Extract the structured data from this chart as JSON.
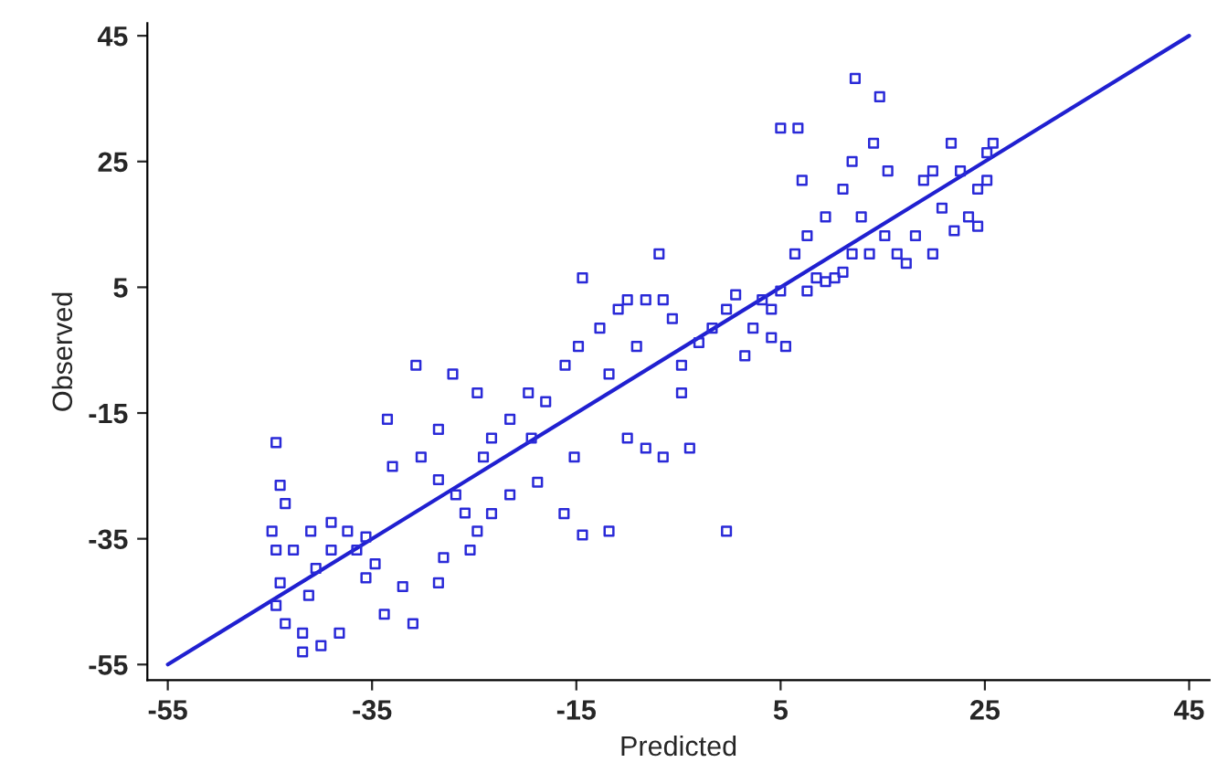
{
  "chart_data": {
    "type": "scatter",
    "xlabel": "Predicted",
    "ylabel": "Observed",
    "xlim": [
      -57,
      47
    ],
    "ylim": [
      -57.5,
      47
    ],
    "xticks": [
      -55,
      -35,
      -15,
      5,
      25,
      45
    ],
    "yticks": [
      -55,
      -35,
      -15,
      5,
      25,
      45
    ],
    "grid": false,
    "series": [
      {
        "marker": "square",
        "color": "#2a2ad8",
        "x": [
          -44.4,
          -44,
          -43.5,
          -44.8,
          -44.4,
          -44,
          -44.4,
          -43.5,
          -41.8,
          -41.8,
          -40,
          -38.2,
          -41.2,
          -40.5,
          -39,
          -37.4,
          -36.5,
          -35.6,
          -34.7,
          -33.8,
          -32,
          -31,
          -28.5,
          -28,
          -41,
          -39,
          -42.7,
          -35.6,
          -33.5,
          -30.7,
          -33,
          -30.2,
          -28.5,
          -26.8,
          -25.9,
          -24.7,
          -24.1,
          -23.3,
          -24.7,
          -21.5,
          -19.7,
          -18,
          -19.4,
          -16.1,
          -15.2,
          -14.8,
          -14.4,
          -18.8,
          -16.2,
          -14.4,
          -21.5,
          -23.3,
          -28.5,
          -27.1,
          -25.4,
          -11.8,
          -12.7,
          -11.8,
          -10.9,
          -9.1,
          -8.2,
          -6.9,
          -6.5,
          -5.6,
          -4.7,
          -3,
          -10,
          -8.2,
          -6.5,
          -3.9,
          -4.7,
          -0.3,
          -1.7,
          -0.3,
          0.6,
          1.5,
          2.3,
          3.2,
          4.1,
          5,
          5.5,
          -10,
          5,
          6.7,
          7.1,
          7.6,
          6.4,
          8.5,
          10.3,
          11.1,
          12,
          9.4,
          11.1,
          12,
          12.3,
          14.7,
          14.1,
          12.9,
          15.2,
          16.4,
          17.3,
          18.2,
          19,
          19.9,
          20.8,
          21.7,
          22.6,
          23.4,
          24.3,
          25.2,
          25.2,
          25.8,
          24.3,
          22,
          19.9,
          13.7,
          9.4,
          7.6,
          4.1,
          15.5
        ],
        "values": [
          -19.7,
          -26.5,
          -29.4,
          -33.8,
          -36.8,
          -42,
          -45.6,
          -48.5,
          -50,
          -53,
          -52,
          -50,
          -44,
          -39.7,
          -36.8,
          -33.8,
          -36.8,
          -34.7,
          -39,
          -47,
          -42.6,
          -48.5,
          -42,
          -38,
          -33.8,
          -32.4,
          -36.8,
          -41.2,
          -16,
          -7.4,
          -23.5,
          -22,
          -25.6,
          -28,
          -30.9,
          -33.8,
          -22,
          -19,
          -11.8,
          -16,
          -11.8,
          -13.2,
          -19,
          -7.4,
          -22,
          -4.4,
          6.5,
          -26,
          -31,
          -34.4,
          -28,
          -31,
          -17.6,
          -8.8,
          -36.8,
          -33.8,
          -1.5,
          -8.8,
          1.5,
          -4.4,
          3,
          10.3,
          3,
          0,
          -7.4,
          -3.8,
          -19,
          -20.6,
          -22,
          -20.6,
          -11.8,
          -33.8,
          -1.5,
          1.5,
          3.8,
          -5.9,
          -1.5,
          3,
          1.5,
          4.4,
          -4.4,
          3,
          30.3,
          30.3,
          22,
          13.2,
          10.3,
          6.5,
          6.5,
          7.4,
          10.3,
          16.2,
          20.6,
          25,
          38.2,
          35.3,
          27.9,
          16.2,
          13.2,
          10.3,
          8.8,
          13.2,
          22,
          23.5,
          17.6,
          27.9,
          23.5,
          16.2,
          20.6,
          22,
          26.4,
          27.9,
          14.7,
          14,
          10.3,
          10.3,
          5.9,
          4.4,
          -3,
          23.5
        ]
      },
      {
        "type": "line",
        "color": "#2020d0",
        "x": [
          -55,
          45
        ],
        "values": [
          -55,
          45
        ]
      }
    ]
  }
}
